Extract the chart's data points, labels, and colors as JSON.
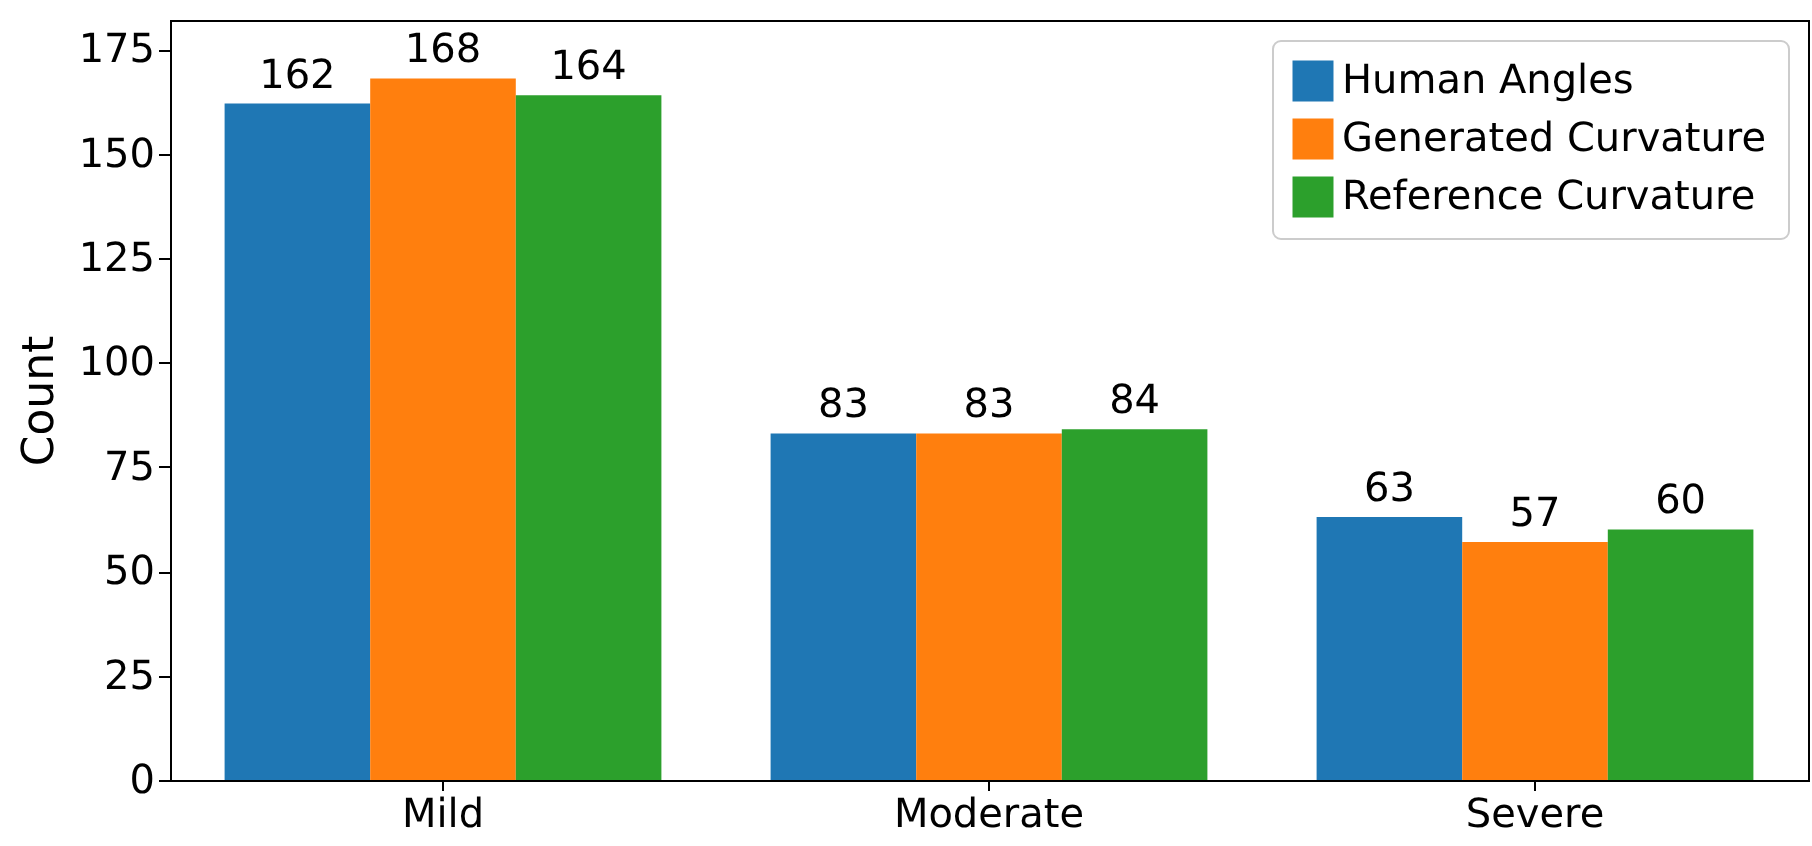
{
  "chart_data": {
    "type": "bar",
    "ylabel": "Count",
    "categories": [
      "Mild",
      "Moderate",
      "Severe"
    ],
    "series": [
      {
        "name": "Human Angles",
        "color": "#1f77b4",
        "values": [
          162,
          83,
          63
        ]
      },
      {
        "name": "Generated Curvature",
        "color": "#ff7f0e",
        "values": [
          168,
          83,
          57
        ]
      },
      {
        "name": "Reference Curvature",
        "color": "#2ca02c",
        "values": [
          164,
          84,
          60
        ]
      }
    ],
    "ylim": [
      0,
      182
    ],
    "yticks": [
      0,
      25,
      50,
      75,
      100,
      125,
      150,
      175
    ],
    "data_labels": true,
    "legend": "top right",
    "grid": false
  }
}
